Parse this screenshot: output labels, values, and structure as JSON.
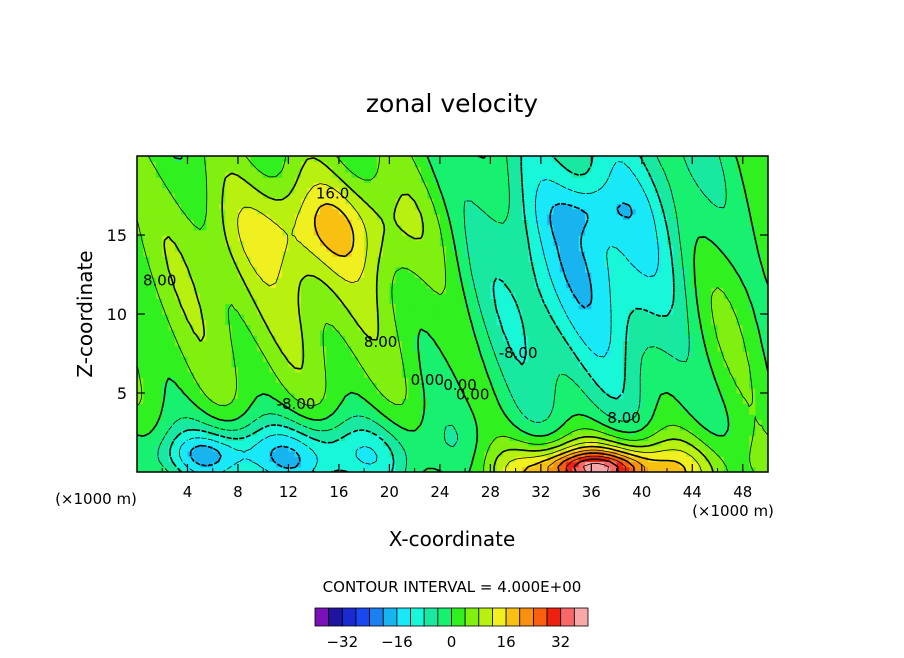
{
  "chart_data": {
    "type": "heatmap",
    "subtype": "filled-contour",
    "title": "zonal velocity",
    "xlabel": "X-coordinate",
    "ylabel": "Z-coordinate",
    "x_unit": "(×1000 m)",
    "y_unit": "(×1000 m)",
    "xlim": [
      0,
      50
    ],
    "ylim": [
      0,
      20
    ],
    "x_ticks": [
      4,
      8,
      12,
      16,
      20,
      24,
      28,
      32,
      36,
      40,
      44,
      48
    ],
    "y_ticks": [
      5,
      10,
      15
    ],
    "contour_interval_label": "CONTOUR INTERVAL = 4.000E+00",
    "contour_interval": 4,
    "contour_labels": [
      {
        "text": "16.0",
        "x": 15.5,
        "y": 17.3
      },
      {
        "text": "8.00",
        "x": 1.8,
        "y": 11.8
      },
      {
        "text": "8.00",
        "x": 19.3,
        "y": 7.9
      },
      {
        "text": "0.00",
        "x": 23.0,
        "y": 5.5
      },
      {
        "text": "0.00",
        "x": 25.6,
        "y": 5.2
      },
      {
        "text": "0.00",
        "x": 26.6,
        "y": 4.6
      },
      {
        "text": "-8.00",
        "x": 12.6,
        "y": 4.0
      },
      {
        "text": "-8.00",
        "x": 30.2,
        "y": 7.2
      },
      {
        "text": "8.00",
        "x": 38.6,
        "y": 3.1
      }
    ],
    "features": [
      {
        "kind": "max",
        "x": 15.0,
        "y": 14.8,
        "value": 17
      },
      {
        "kind": "max",
        "x": 38.0,
        "y": 0.5,
        "value": 40
      },
      {
        "kind": "min",
        "x": 36.0,
        "y": 16.0,
        "value": -17
      },
      {
        "kind": "min",
        "x": 5.5,
        "y": 1.2,
        "value": -18
      },
      {
        "kind": "min",
        "x": 16.5,
        "y": 1.4,
        "value": -15
      }
    ],
    "colorbar": {
      "levels": [
        -36,
        -32,
        -28,
        -24,
        -20,
        -16,
        -12,
        -8,
        -4,
        0,
        4,
        8,
        12,
        16,
        20,
        24,
        28,
        32,
        36
      ],
      "tick_labels": [
        "-32",
        "-16",
        "0",
        "16",
        "32"
      ],
      "colors": [
        "#7a10b8",
        "#1e14a0",
        "#1a2ad0",
        "#1a48f0",
        "#1a80f0",
        "#18b4f0",
        "#18e8f8",
        "#18f8d8",
        "#18e8a0",
        "#18f070",
        "#30f020",
        "#80f010",
        "#b8f010",
        "#f0f020",
        "#f8c010",
        "#f89010",
        "#f86010",
        "#f02010",
        "#f86868",
        "#f8a8a8"
      ]
    }
  }
}
